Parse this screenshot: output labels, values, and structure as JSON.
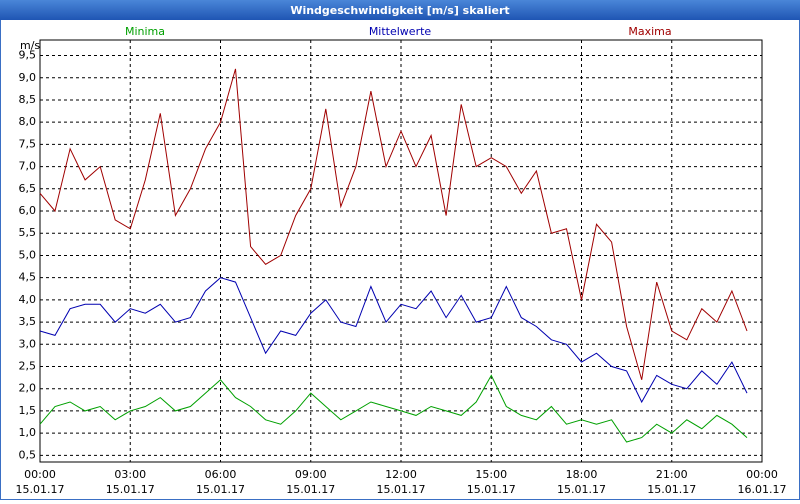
{
  "window_title": "Windgeschwindigkeit [m/s] skaliert",
  "chart_data": {
    "type": "line",
    "y_label": "m/s",
    "x": [
      0,
      0.5,
      1,
      1.5,
      2,
      2.5,
      3,
      3.5,
      4,
      4.5,
      5,
      5.5,
      6,
      6.5,
      7,
      7.5,
      8,
      8.5,
      9,
      9.5,
      10,
      10.5,
      11,
      11.5,
      12,
      12.5,
      13,
      13.5,
      14,
      14.5,
      15,
      15.5,
      16,
      16.5,
      17,
      17.5,
      18,
      18.5,
      19,
      19.5,
      20,
      20.5,
      21,
      21.5,
      22,
      22.5,
      23,
      23.5
    ],
    "series": [
      {
        "name": "Minima",
        "color": "#00a000",
        "values": [
          1.2,
          1.6,
          1.7,
          1.5,
          1.6,
          1.3,
          1.5,
          1.6,
          1.8,
          1.5,
          1.6,
          1.9,
          2.2,
          1.8,
          1.6,
          1.3,
          1.2,
          1.5,
          1.9,
          1.6,
          1.3,
          1.5,
          1.7,
          1.6,
          1.5,
          1.4,
          1.6,
          1.5,
          1.4,
          1.7,
          2.3,
          1.6,
          1.4,
          1.3,
          1.6,
          1.2,
          1.3,
          1.2,
          1.3,
          0.8,
          0.9,
          1.2,
          1.0,
          1.3,
          1.1,
          1.4,
          1.2,
          0.9
        ]
      },
      {
        "name": "Mittelwerte",
        "color": "#0000b0",
        "values": [
          3.3,
          3.2,
          3.8,
          3.9,
          3.9,
          3.5,
          3.8,
          3.7,
          3.9,
          3.5,
          3.6,
          4.2,
          4.5,
          4.4,
          3.6,
          2.8,
          3.3,
          3.2,
          3.7,
          4.0,
          3.5,
          3.4,
          4.3,
          3.5,
          3.9,
          3.8,
          4.2,
          3.6,
          4.1,
          3.5,
          3.6,
          4.3,
          3.6,
          3.4,
          3.1,
          3.0,
          2.6,
          2.8,
          2.5,
          2.4,
          1.7,
          2.3,
          2.1,
          2.0,
          2.4,
          2.1,
          2.6,
          1.9
        ]
      },
      {
        "name": "Maxima",
        "color": "#a00000",
        "values": [
          6.4,
          6.0,
          7.4,
          6.7,
          7.0,
          5.8,
          5.6,
          6.7,
          8.2,
          5.9,
          6.5,
          7.4,
          8.0,
          9.2,
          5.2,
          4.8,
          5.0,
          5.9,
          6.5,
          8.3,
          6.1,
          7.0,
          8.7,
          7.0,
          7.8,
          7.0,
          7.7,
          5.9,
          8.4,
          7.0,
          7.2,
          7.0,
          6.4,
          6.9,
          5.5,
          5.6,
          4.0,
          5.7,
          5.3,
          3.4,
          2.2,
          4.4,
          3.3,
          3.1,
          3.8,
          3.5,
          4.2,
          3.3
        ]
      }
    ],
    "xlim": [
      0,
      24
    ],
    "xticks": [
      {
        "value": 0,
        "label": "00:00"
      },
      {
        "value": 3,
        "label": "03:00"
      },
      {
        "value": 6,
        "label": "06:00"
      },
      {
        "value": 9,
        "label": "09:00"
      },
      {
        "value": 12,
        "label": "12:00"
      },
      {
        "value": 15,
        "label": "15:00"
      },
      {
        "value": 18,
        "label": "18:00"
      },
      {
        "value": 21,
        "label": "21:00"
      },
      {
        "value": 24,
        "label": "00:00"
      }
    ],
    "xtick_dates": [
      "15.01.17",
      "15.01.17",
      "15.01.17",
      "15.01.17",
      "15.01.17",
      "15.01.17",
      "15.01.17",
      "15.01.17",
      "16.01.17"
    ],
    "ylim": [
      0.35,
      9.85
    ],
    "yticks": [
      {
        "value": 0.5,
        "label": "0,5"
      },
      {
        "value": 1,
        "label": "1,0"
      },
      {
        "value": 1.5,
        "label": "1,5"
      },
      {
        "value": 2,
        "label": "2,0"
      },
      {
        "value": 2.5,
        "label": "2,5"
      },
      {
        "value": 3,
        "label": "3,0"
      },
      {
        "value": 3.5,
        "label": "3,5"
      },
      {
        "value": 4,
        "label": "4,0"
      },
      {
        "value": 4.5,
        "label": "4,5"
      },
      {
        "value": 5,
        "label": "5,0"
      },
      {
        "value": 5.5,
        "label": "5,5"
      },
      {
        "value": 6,
        "label": "6,0"
      },
      {
        "value": 6.5,
        "label": "6,5"
      },
      {
        "value": 7,
        "label": "7,0"
      },
      {
        "value": 7.5,
        "label": "7,5"
      },
      {
        "value": 8,
        "label": "8,0"
      },
      {
        "value": 8.5,
        "label": "8,5"
      },
      {
        "value": 9,
        "label": "9,0"
      },
      {
        "value": 9.5,
        "label": "9,5"
      }
    ],
    "grid": true
  }
}
